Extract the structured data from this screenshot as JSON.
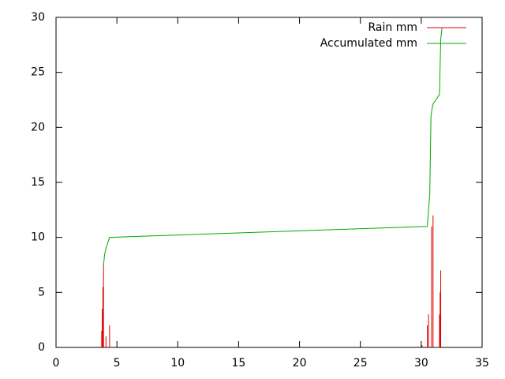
{
  "chart_data": {
    "type": "line",
    "xlim": [
      0,
      35
    ],
    "ylim": [
      0,
      30
    ],
    "xticks": [
      0,
      5,
      10,
      15,
      20,
      25,
      30,
      35
    ],
    "yticks": [
      0,
      5,
      10,
      15,
      20,
      25,
      30
    ],
    "grid": false,
    "legend": "top-right",
    "series": [
      {
        "name": "Rain mm",
        "color": "#dd0000",
        "style": "impulses",
        "x": [
          3.75,
          3.8,
          3.85,
          3.9,
          4.1,
          4.4,
          30.07,
          30.5,
          30.6,
          30.85,
          30.97,
          31.5,
          31.55,
          31.6
        ],
        "values": [
          1.5,
          3.5,
          5.5,
          7.5,
          1,
          2,
          0.2,
          2,
          3,
          11,
          12,
          3,
          5,
          7
        ]
      },
      {
        "name": "Accumulated mm",
        "color": "#00aa00",
        "style": "lines",
        "x": [
          3.9,
          4.0,
          4.1,
          4.4,
          30.5,
          30.6,
          30.7,
          30.8,
          30.9,
          31.0,
          31.2,
          31.5,
          31.6,
          31.7
        ],
        "values": [
          7.5,
          8.5,
          9,
          10,
          11,
          12.5,
          14,
          21,
          21.8,
          22.2,
          22.5,
          23,
          28,
          29
        ]
      }
    ]
  }
}
